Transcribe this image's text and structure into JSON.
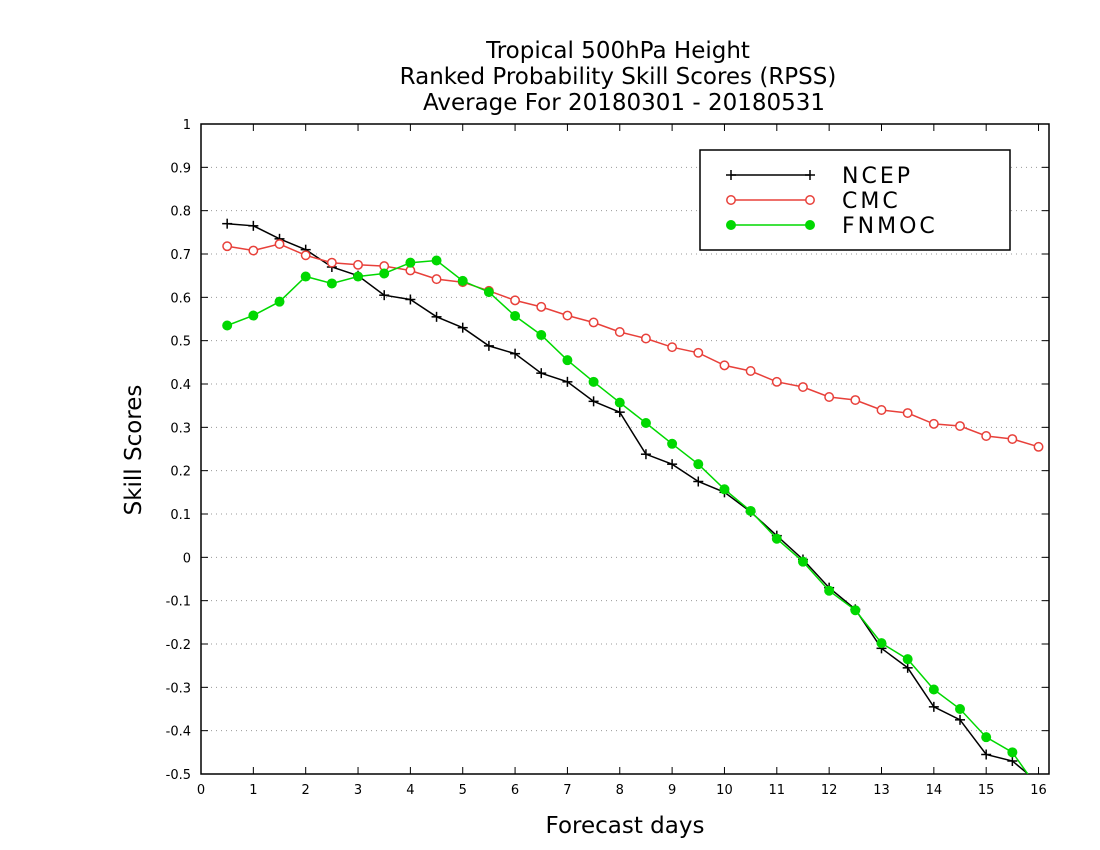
{
  "chart_data": {
    "type": "line",
    "title": [
      "Tropical 500hPa Height",
      "Ranked Probability Skill Scores (RPSS)",
      "Average For 20180301 - 20180531"
    ],
    "xlabel": "Forecast days",
    "ylabel": "Skill Scores",
    "xlim": [
      0,
      16.2
    ],
    "ylim": [
      -0.5,
      1
    ],
    "xticks": [
      0,
      1,
      2,
      3,
      4,
      5,
      6,
      7,
      8,
      9,
      10,
      11,
      12,
      13,
      14,
      15,
      16
    ],
    "yticks": [
      -0.5,
      -0.4,
      -0.3,
      -0.2,
      -0.1,
      0,
      0.1,
      0.2,
      0.3,
      0.4,
      0.5,
      0.6,
      0.7,
      0.8,
      0.9,
      1
    ],
    "ytick_labels": [
      "-0.5",
      "-0.4",
      "-0.3",
      "-0.2",
      "-0.1",
      "0",
      "0.1",
      "0.2",
      "0.3",
      "0.4",
      "0.5",
      "0.6",
      "0.7",
      "0.8",
      "0.9",
      "1"
    ],
    "grid": true,
    "legend_position": "top-right",
    "x": [
      0.5,
      1,
      1.5,
      2,
      2.5,
      3,
      3.5,
      4,
      4.5,
      5,
      5.5,
      6,
      6.5,
      7,
      7.5,
      8,
      8.5,
      9,
      9.5,
      10,
      10.5,
      11,
      11.5,
      12,
      12.5,
      13,
      13.5,
      14,
      14.5,
      15,
      15.5,
      16
    ],
    "series": [
      {
        "name": "NCEP",
        "color": "#000000",
        "marker": "plus",
        "values": [
          0.77,
          0.765,
          0.735,
          0.71,
          0.67,
          0.65,
          0.605,
          0.595,
          0.555,
          0.53,
          0.488,
          0.47,
          0.425,
          0.405,
          0.36,
          0.335,
          0.238,
          0.215,
          0.175,
          0.15,
          0.105,
          0.05,
          -0.005,
          -0.07,
          -0.12,
          -0.21,
          -0.255,
          -0.345,
          -0.375,
          -0.455,
          -0.47,
          -0.52
        ]
      },
      {
        "name": "CMC",
        "color": "#e8403a",
        "marker": "open-circle",
        "values": [
          0.718,
          0.708,
          0.723,
          0.697,
          0.68,
          0.675,
          0.672,
          0.662,
          0.642,
          0.635,
          0.615,
          0.593,
          0.578,
          0.558,
          0.542,
          0.52,
          0.505,
          0.485,
          0.472,
          0.443,
          0.43,
          0.405,
          0.393,
          0.37,
          0.363,
          0.34,
          0.333,
          0.308,
          0.303,
          0.28,
          0.273,
          0.255
        ]
      },
      {
        "name": "FNMOC",
        "color": "#00d800",
        "marker": "filled-circle",
        "values": [
          0.535,
          0.558,
          0.59,
          0.648,
          0.632,
          0.648,
          0.655,
          0.68,
          0.685,
          0.638,
          0.612,
          0.557,
          0.513,
          0.455,
          0.405,
          0.357,
          0.31,
          0.262,
          0.215,
          0.157,
          0.107,
          0.043,
          -0.01,
          -0.077,
          -0.122,
          -0.198,
          -0.235,
          -0.305,
          -0.35,
          -0.415,
          -0.45,
          -0.535
        ]
      }
    ]
  }
}
